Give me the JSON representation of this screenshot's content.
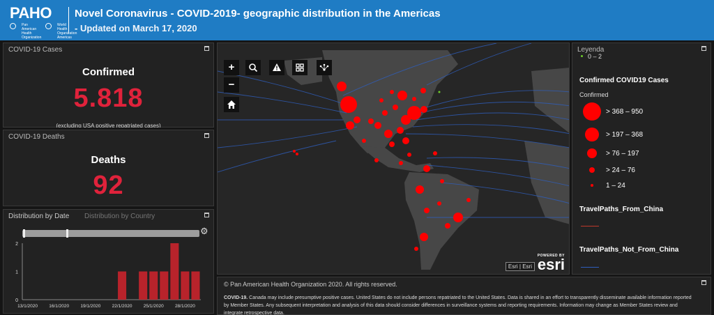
{
  "header": {
    "logo_text": "PAHO",
    "logo_sub_left": "Pan American Health Organization",
    "logo_sub_right": "World Health Organization Americas",
    "title": "Novel Coronavirus - COVID-2019- geographic distribution in the Americas",
    "subtitle": "- Updated on March 17, 2020"
  },
  "cases": {
    "panel_title": "COVID-19 Cases",
    "label": "Confirmed",
    "value": "5.818",
    "note": "(excluding USA positive repatriated cases)"
  },
  "deaths": {
    "panel_title": "COVID-19 Deaths",
    "label": "Deaths",
    "value": "92"
  },
  "distribution": {
    "tab_date": "Distribution by Date",
    "tab_country": "Distribution by Country"
  },
  "chart_data": {
    "type": "bar",
    "categories": [
      "13/1/2020",
      "14/1/2020",
      "15/1/2020",
      "16/1/2020",
      "17/1/2020",
      "18/1/2020",
      "19/1/2020",
      "20/1/2020",
      "21/1/2020",
      "22/1/2020",
      "23/1/2020",
      "24/1/2020",
      "25/1/2020",
      "26/1/2020",
      "27/1/2020",
      "28/1/2020",
      "29/1/2020"
    ],
    "values": [
      0,
      0,
      0,
      0,
      0,
      0,
      0,
      0,
      0,
      1,
      0,
      1,
      1,
      1,
      2,
      1,
      1
    ],
    "x_tick_labels": [
      "13/1/2020",
      "16/1/2020",
      "19/1/2020",
      "22/1/2020",
      "25/1/2020",
      "28/1/2020"
    ],
    "y_ticks": [
      0,
      1,
      2
    ],
    "ylim": [
      0,
      2
    ],
    "bar_color": "#b8232b",
    "grid": false
  },
  "map": {
    "zoom_in": "+",
    "zoom_out": "−",
    "attribution": "Esri | Esri",
    "powered_by": "POWERED BY",
    "esri_logo": "esri"
  },
  "legend": {
    "panel_title": "Leyenda",
    "top_range": "0 – 2",
    "heading": "Confirmed COVID19 Cases",
    "field": "Confirmed",
    "classes": [
      {
        "label": "> 368 – 950"
      },
      {
        "label": "> 197 – 368"
      },
      {
        "label": "> 76 – 197"
      },
      {
        "label": "> 24 – 76"
      },
      {
        "label": "1 – 24"
      }
    ],
    "layer_china": "TravelPaths_From_China",
    "layer_not_china": "TravelPaths_Not_From_China",
    "color_cases": "#ff0000",
    "color_china": "#c0392b",
    "color_not_china": "#2f5fbf"
  },
  "footer": {
    "copyright": "© Pan American Health Organization 2020. All rights reserved.",
    "lead": "COVID-19.",
    "text": " Canada may include presumptive positive cases. United States do not include persons repatriated to the United States. Data is shared in an effort to transparently disseminate available information reported by Member States. Any subsequent interpretation and analysis of this data should consider differences in surveillance systems and reporting requirements. Information may change as Member States review and integrate retrospective data."
  }
}
